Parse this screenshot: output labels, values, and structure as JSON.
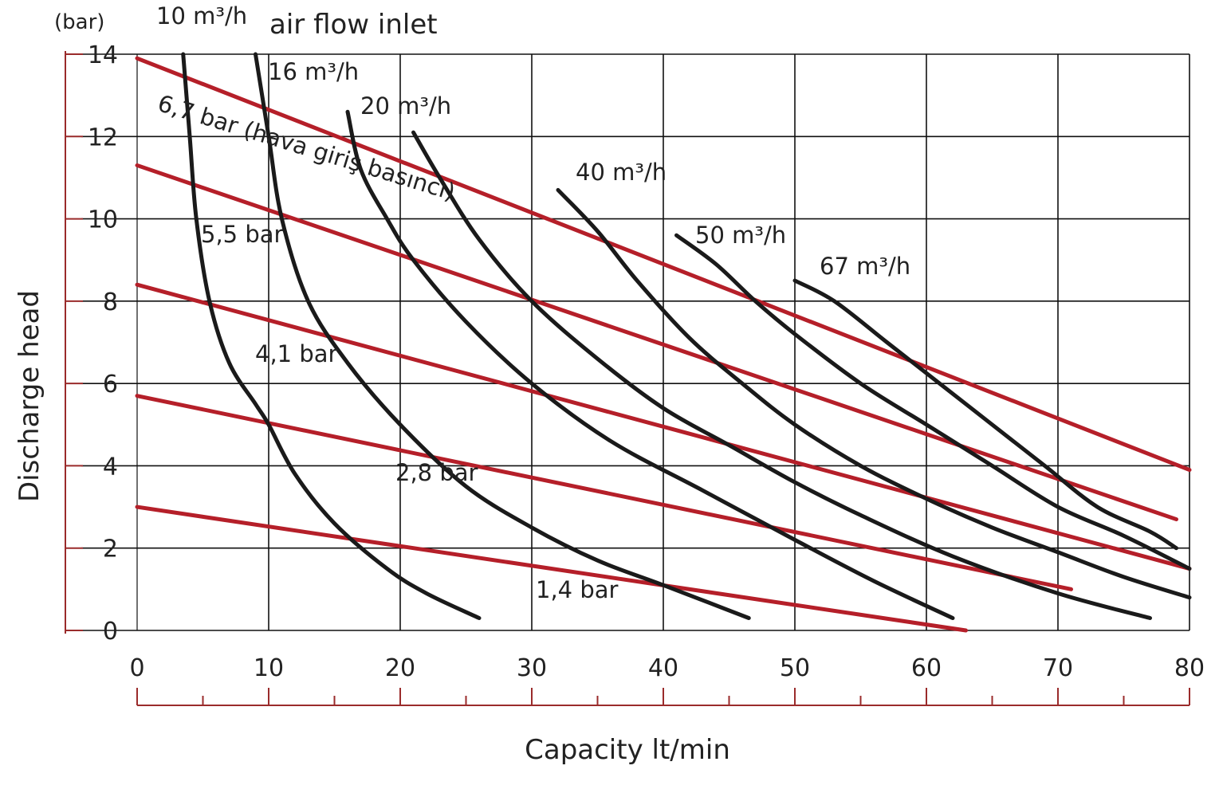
{
  "chart_data": {
    "type": "line",
    "xlabel": "Capacity lt/min",
    "ylabel": "Discharge head",
    "yunit": "(bar)",
    "legend_title": "air flow inlet",
    "xlim": [
      0,
      80
    ],
    "ylim": [
      0,
      14
    ],
    "xticks": [
      "0",
      "10",
      "20",
      "30",
      "40",
      "50",
      "60",
      "70",
      "80"
    ],
    "yticks": [
      "0",
      "2",
      "4",
      "6",
      "8",
      "10",
      "12",
      "14"
    ],
    "grid": true,
    "colors": {
      "airflow": "#1a1a1a",
      "pressure": "#b51f29",
      "axis": "#9a2b2b",
      "grid": "#111111"
    },
    "airflow_series": [
      {
        "name": "10 m³/h",
        "points": [
          [
            3.5,
            14
          ],
          [
            4,
            12
          ],
          [
            4.5,
            10
          ],
          [
            5.5,
            8
          ],
          [
            7,
            6.5
          ],
          [
            9,
            5.5
          ],
          [
            10,
            5
          ],
          [
            12,
            3.8
          ],
          [
            15,
            2.6
          ],
          [
            19,
            1.5
          ],
          [
            22,
            0.9
          ],
          [
            26,
            0.3
          ]
        ]
      },
      {
        "name": "16 m³/h",
        "points": [
          [
            9,
            14
          ],
          [
            10,
            12
          ],
          [
            11,
            10
          ],
          [
            13,
            8
          ],
          [
            16,
            6.5
          ],
          [
            20,
            5
          ],
          [
            25,
            3.5
          ],
          [
            30,
            2.5
          ],
          [
            35,
            1.7
          ],
          [
            40,
            1.1
          ],
          [
            46.5,
            0.3
          ]
        ]
      },
      {
        "name": "20 m³/h",
        "points": [
          [
            16,
            12.6
          ],
          [
            17,
            11.2
          ],
          [
            19,
            10
          ],
          [
            21,
            9
          ],
          [
            25,
            7.5
          ],
          [
            30,
            6
          ],
          [
            36,
            4.6
          ],
          [
            43,
            3.4
          ],
          [
            50,
            2.2
          ],
          [
            56,
            1.2
          ],
          [
            62,
            0.3
          ]
        ]
      },
      {
        "name": "",
        "points": [
          [
            21,
            12.1
          ],
          [
            23,
            11
          ],
          [
            26,
            9.5
          ],
          [
            30,
            8
          ],
          [
            35,
            6.6
          ],
          [
            40,
            5.4
          ],
          [
            45,
            4.5
          ],
          [
            50,
            3.6
          ],
          [
            55,
            2.8
          ],
          [
            62,
            1.8
          ],
          [
            70,
            0.9
          ],
          [
            77,
            0.3
          ]
        ]
      },
      {
        "name": "40 m³/h",
        "points": [
          [
            32,
            10.7
          ],
          [
            35,
            9.7
          ],
          [
            38,
            8.5
          ],
          [
            42,
            7.1
          ],
          [
            46,
            6
          ],
          [
            50,
            5
          ],
          [
            55,
            4
          ],
          [
            60,
            3.2
          ],
          [
            65,
            2.5
          ],
          [
            70,
            1.9
          ],
          [
            75,
            1.3
          ],
          [
            80,
            0.8
          ]
        ]
      },
      {
        "name": "50 m³/h",
        "points": [
          [
            41,
            9.6
          ],
          [
            44,
            8.9
          ],
          [
            47,
            8
          ],
          [
            50,
            7.2
          ],
          [
            55,
            6
          ],
          [
            60,
            5
          ],
          [
            65,
            4
          ],
          [
            70,
            3
          ],
          [
            75,
            2.3
          ],
          [
            80,
            1.5
          ]
        ]
      },
      {
        "name": "67 m³/h",
        "points": [
          [
            50,
            8.5
          ],
          [
            53,
            8
          ],
          [
            57,
            7
          ],
          [
            61,
            6
          ],
          [
            65,
            5
          ],
          [
            69,
            4
          ],
          [
            73,
            3
          ],
          [
            77,
            2.4
          ],
          [
            79,
            2
          ]
        ]
      }
    ],
    "pressure_series": [
      {
        "name": "6,7 bar (hava giriş basıncı)",
        "points": [
          [
            0,
            13.9
          ],
          [
            80,
            3.9
          ]
        ]
      },
      {
        "name": "5,5 bar",
        "points": [
          [
            0,
            11.3
          ],
          [
            79,
            2.7
          ]
        ]
      },
      {
        "name": "4,1 bar",
        "points": [
          [
            0,
            8.4
          ],
          [
            80,
            1.5
          ]
        ]
      },
      {
        "name": "2,8 bar",
        "points": [
          [
            0,
            5.7
          ],
          [
            71,
            1
          ]
        ]
      },
      {
        "name": "1,4 bar",
        "points": [
          [
            0,
            3
          ],
          [
            63,
            0
          ]
        ]
      }
    ]
  }
}
